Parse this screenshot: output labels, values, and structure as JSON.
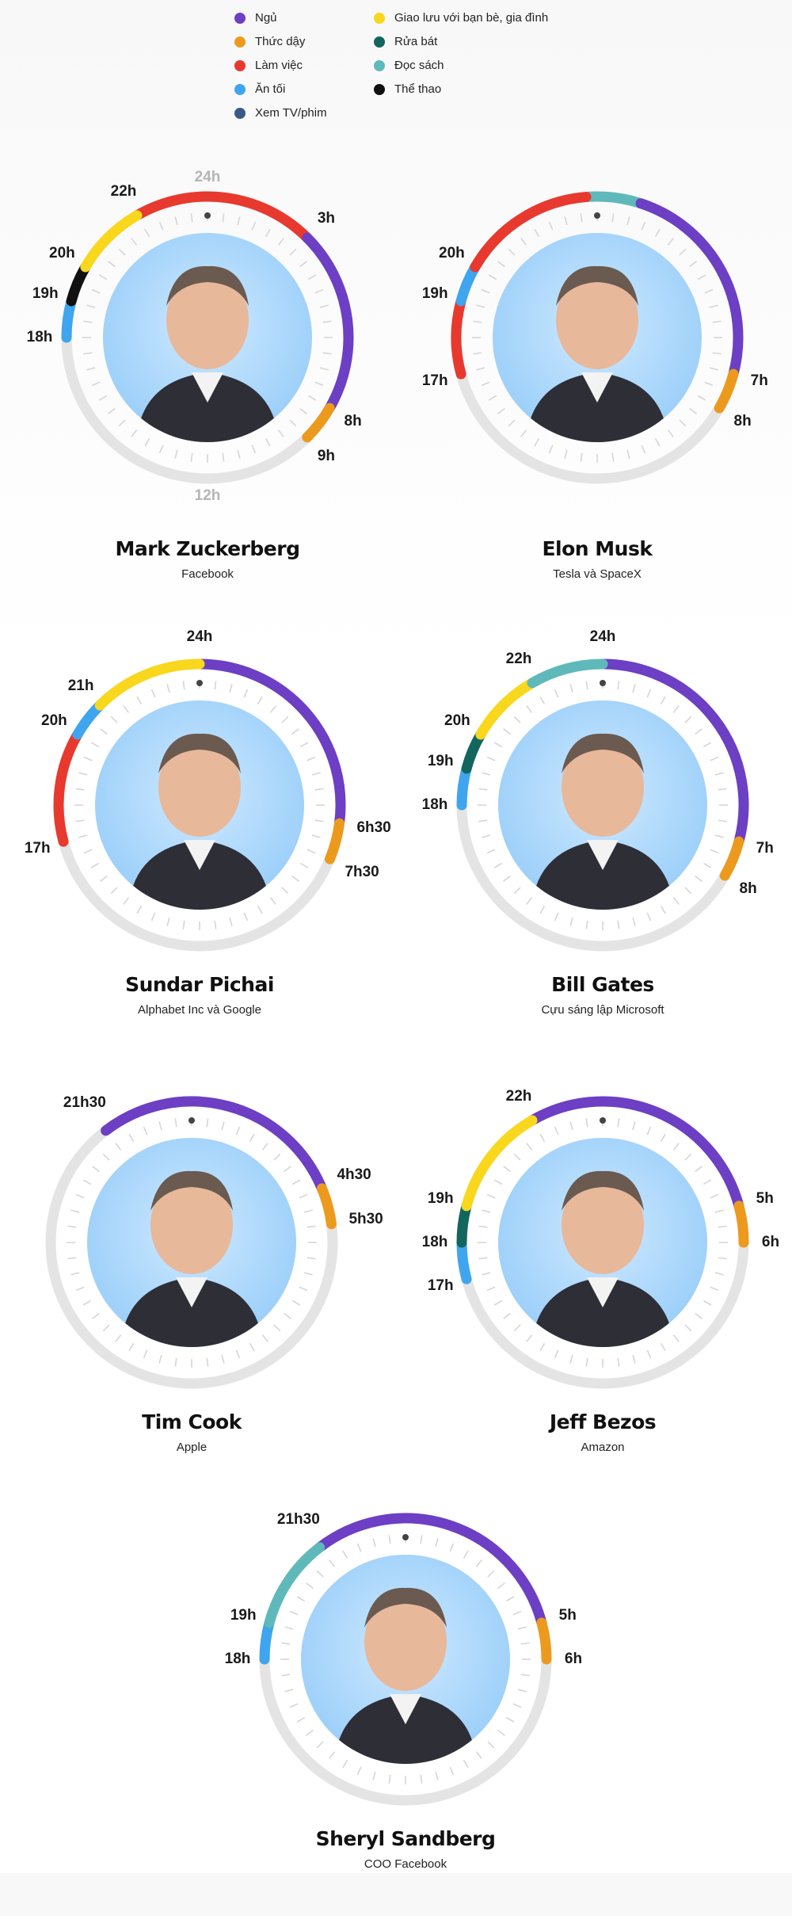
{
  "legend": [
    {
      "label": "Ngủ",
      "color": "#6c3fc4"
    },
    {
      "label": "Thức dậy",
      "color": "#ec9a1e"
    },
    {
      "label": "Làm việc",
      "color": "#e8392f"
    },
    {
      "label": "Ăn tối",
      "color": "#3fa5ee"
    },
    {
      "label": "Xem TV/phim",
      "color": "#3a5a86"
    },
    {
      "label": "Giao lưu với bạn bè, gia đình",
      "color": "#f9d71c"
    },
    {
      "label": "Rửa bát",
      "color": "#12665e"
    },
    {
      "label": "Đọc sách",
      "color": "#5fb9bb"
    },
    {
      "label": "Thể thao",
      "color": "#111111"
    }
  ],
  "people": [
    {
      "name": "Mark Zuckerberg",
      "company": "Facebook",
      "top_label": "24h",
      "bottom_label": "12h",
      "segments": [
        {
          "activity": "Làm việc",
          "start": 22,
          "end": 3
        },
        {
          "activity": "Ngủ",
          "start": 3,
          "end": 8
        },
        {
          "activity": "Thức dậy",
          "start": 8,
          "end": 9
        },
        {
          "activity": "Ăn tối",
          "start": 18,
          "end": 19
        },
        {
          "activity": "Thể thao",
          "start": 19,
          "end": 20
        },
        {
          "activity": "Giao lưu với bạn bè, gia đình",
          "start": 20,
          "end": 22
        }
      ],
      "labels": [
        {
          "text": "3h",
          "hour": 3
        },
        {
          "text": "8h",
          "hour": 8
        },
        {
          "text": "9h",
          "hour": 9
        },
        {
          "text": "18h",
          "hour": 18
        },
        {
          "text": "19h",
          "hour": 19
        },
        {
          "text": "20h",
          "hour": 20
        },
        {
          "text": "22h",
          "hour": 22
        }
      ]
    },
    {
      "name": "Elon Musk",
      "company": "Tesla và SpaceX",
      "top_label": "",
      "bottom_label": "",
      "segments": [
        {
          "activity": "Đọc sách",
          "start": 23.7,
          "end": 1.2
        },
        {
          "activity": "Ngủ",
          "start": 1.2,
          "end": 7
        },
        {
          "activity": "Thức dậy",
          "start": 7,
          "end": 8
        },
        {
          "activity": "Làm việc",
          "start": 17,
          "end": 19
        },
        {
          "activity": "Ăn tối",
          "start": 19,
          "end": 20
        },
        {
          "activity": "Làm việc",
          "start": 20,
          "end": 23.7
        }
      ],
      "labels": [
        {
          "text": "7h",
          "hour": 7
        },
        {
          "text": "8h",
          "hour": 8
        },
        {
          "text": "17h",
          "hour": 17
        },
        {
          "text": "19h",
          "hour": 19
        },
        {
          "text": "20h",
          "hour": 20
        }
      ]
    },
    {
      "name": "Sundar Pichai",
      "company": "Alphabet Inc và Google",
      "top_label": "",
      "bottom_label": "",
      "segments": [
        {
          "activity": "Ngủ",
          "start": 0,
          "end": 6.5
        },
        {
          "activity": "Thức dậy",
          "start": 6.5,
          "end": 7.5
        },
        {
          "activity": "Làm việc",
          "start": 17,
          "end": 20
        },
        {
          "activity": "Ăn tối",
          "start": 20,
          "end": 21
        },
        {
          "activity": "Giao lưu với bạn bè, gia đình",
          "start": 21,
          "end": 24
        }
      ],
      "labels": [
        {
          "text": "24h",
          "hour": 0
        },
        {
          "text": "6h30",
          "hour": 6.5
        },
        {
          "text": "7h30",
          "hour": 7.5
        },
        {
          "text": "17h",
          "hour": 17
        },
        {
          "text": "20h",
          "hour": 20
        },
        {
          "text": "21h",
          "hour": 21
        }
      ]
    },
    {
      "name": "Bill Gates",
      "company": "Cựu sáng lập Microsoft",
      "top_label": "",
      "bottom_label": "",
      "segments": [
        {
          "activity": "Ngủ",
          "start": 0,
          "end": 7
        },
        {
          "activity": "Thức dậy",
          "start": 7,
          "end": 8
        },
        {
          "activity": "Ăn tối",
          "start": 18,
          "end": 19
        },
        {
          "activity": "Rửa bát",
          "start": 19,
          "end": 20
        },
        {
          "activity": "Giao lưu với bạn bè, gia đình",
          "start": 20,
          "end": 22
        },
        {
          "activity": "Đọc sách",
          "start": 22,
          "end": 24
        }
      ],
      "labels": [
        {
          "text": "24h",
          "hour": 0
        },
        {
          "text": "7h",
          "hour": 7
        },
        {
          "text": "8h",
          "hour": 8
        },
        {
          "text": "18h",
          "hour": 18
        },
        {
          "text": "19h",
          "hour": 19
        },
        {
          "text": "20h",
          "hour": 20
        },
        {
          "text": "22h",
          "hour": 22
        }
      ]
    },
    {
      "name": "Tim Cook",
      "company": "Apple",
      "top_label": "",
      "bottom_label": "",
      "segments": [
        {
          "activity": "Ngủ",
          "start": 21.5,
          "end": 4.5
        },
        {
          "activity": "Thức dậy",
          "start": 4.5,
          "end": 5.5
        }
      ],
      "labels": [
        {
          "text": "21h30",
          "hour": 21.5
        },
        {
          "text": "4h30",
          "hour": 4.5
        },
        {
          "text": "5h30",
          "hour": 5.5
        }
      ]
    },
    {
      "name": "Jeff Bezos",
      "company": "Amazon",
      "top_label": "",
      "bottom_label": "",
      "segments": [
        {
          "activity": "Ngủ",
          "start": 22,
          "end": 5
        },
        {
          "activity": "Thức dậy",
          "start": 5,
          "end": 6
        },
        {
          "activity": "Ăn tối",
          "start": 17,
          "end": 18
        },
        {
          "activity": "Rửa bát",
          "start": 18,
          "end": 19
        },
        {
          "activity": "Giao lưu với bạn bè, gia đình",
          "start": 19,
          "end": 22
        }
      ],
      "labels": [
        {
          "text": "22h",
          "hour": 22
        },
        {
          "text": "5h",
          "hour": 5
        },
        {
          "text": "6h",
          "hour": 6
        },
        {
          "text": "17h",
          "hour": 17
        },
        {
          "text": "18h",
          "hour": 18
        },
        {
          "text": "19h",
          "hour": 19
        }
      ]
    },
    {
      "name": "Sheryl Sandberg",
      "company": "COO Facebook",
      "top_label": "",
      "bottom_label": "",
      "segments": [
        {
          "activity": "Ngủ",
          "start": 21.5,
          "end": 5
        },
        {
          "activity": "Thức dậy",
          "start": 5,
          "end": 6
        },
        {
          "activity": "Ăn tối",
          "start": 18,
          "end": 19
        },
        {
          "activity": "Đọc sách",
          "start": 19,
          "end": 21.5
        }
      ],
      "labels": [
        {
          "text": "21h30",
          "hour": 21.5
        },
        {
          "text": "5h",
          "hour": 5
        },
        {
          "text": "6h",
          "hour": 6
        },
        {
          "text": "18h",
          "hour": 18
        },
        {
          "text": "19h",
          "hour": 19
        }
      ]
    }
  ]
}
